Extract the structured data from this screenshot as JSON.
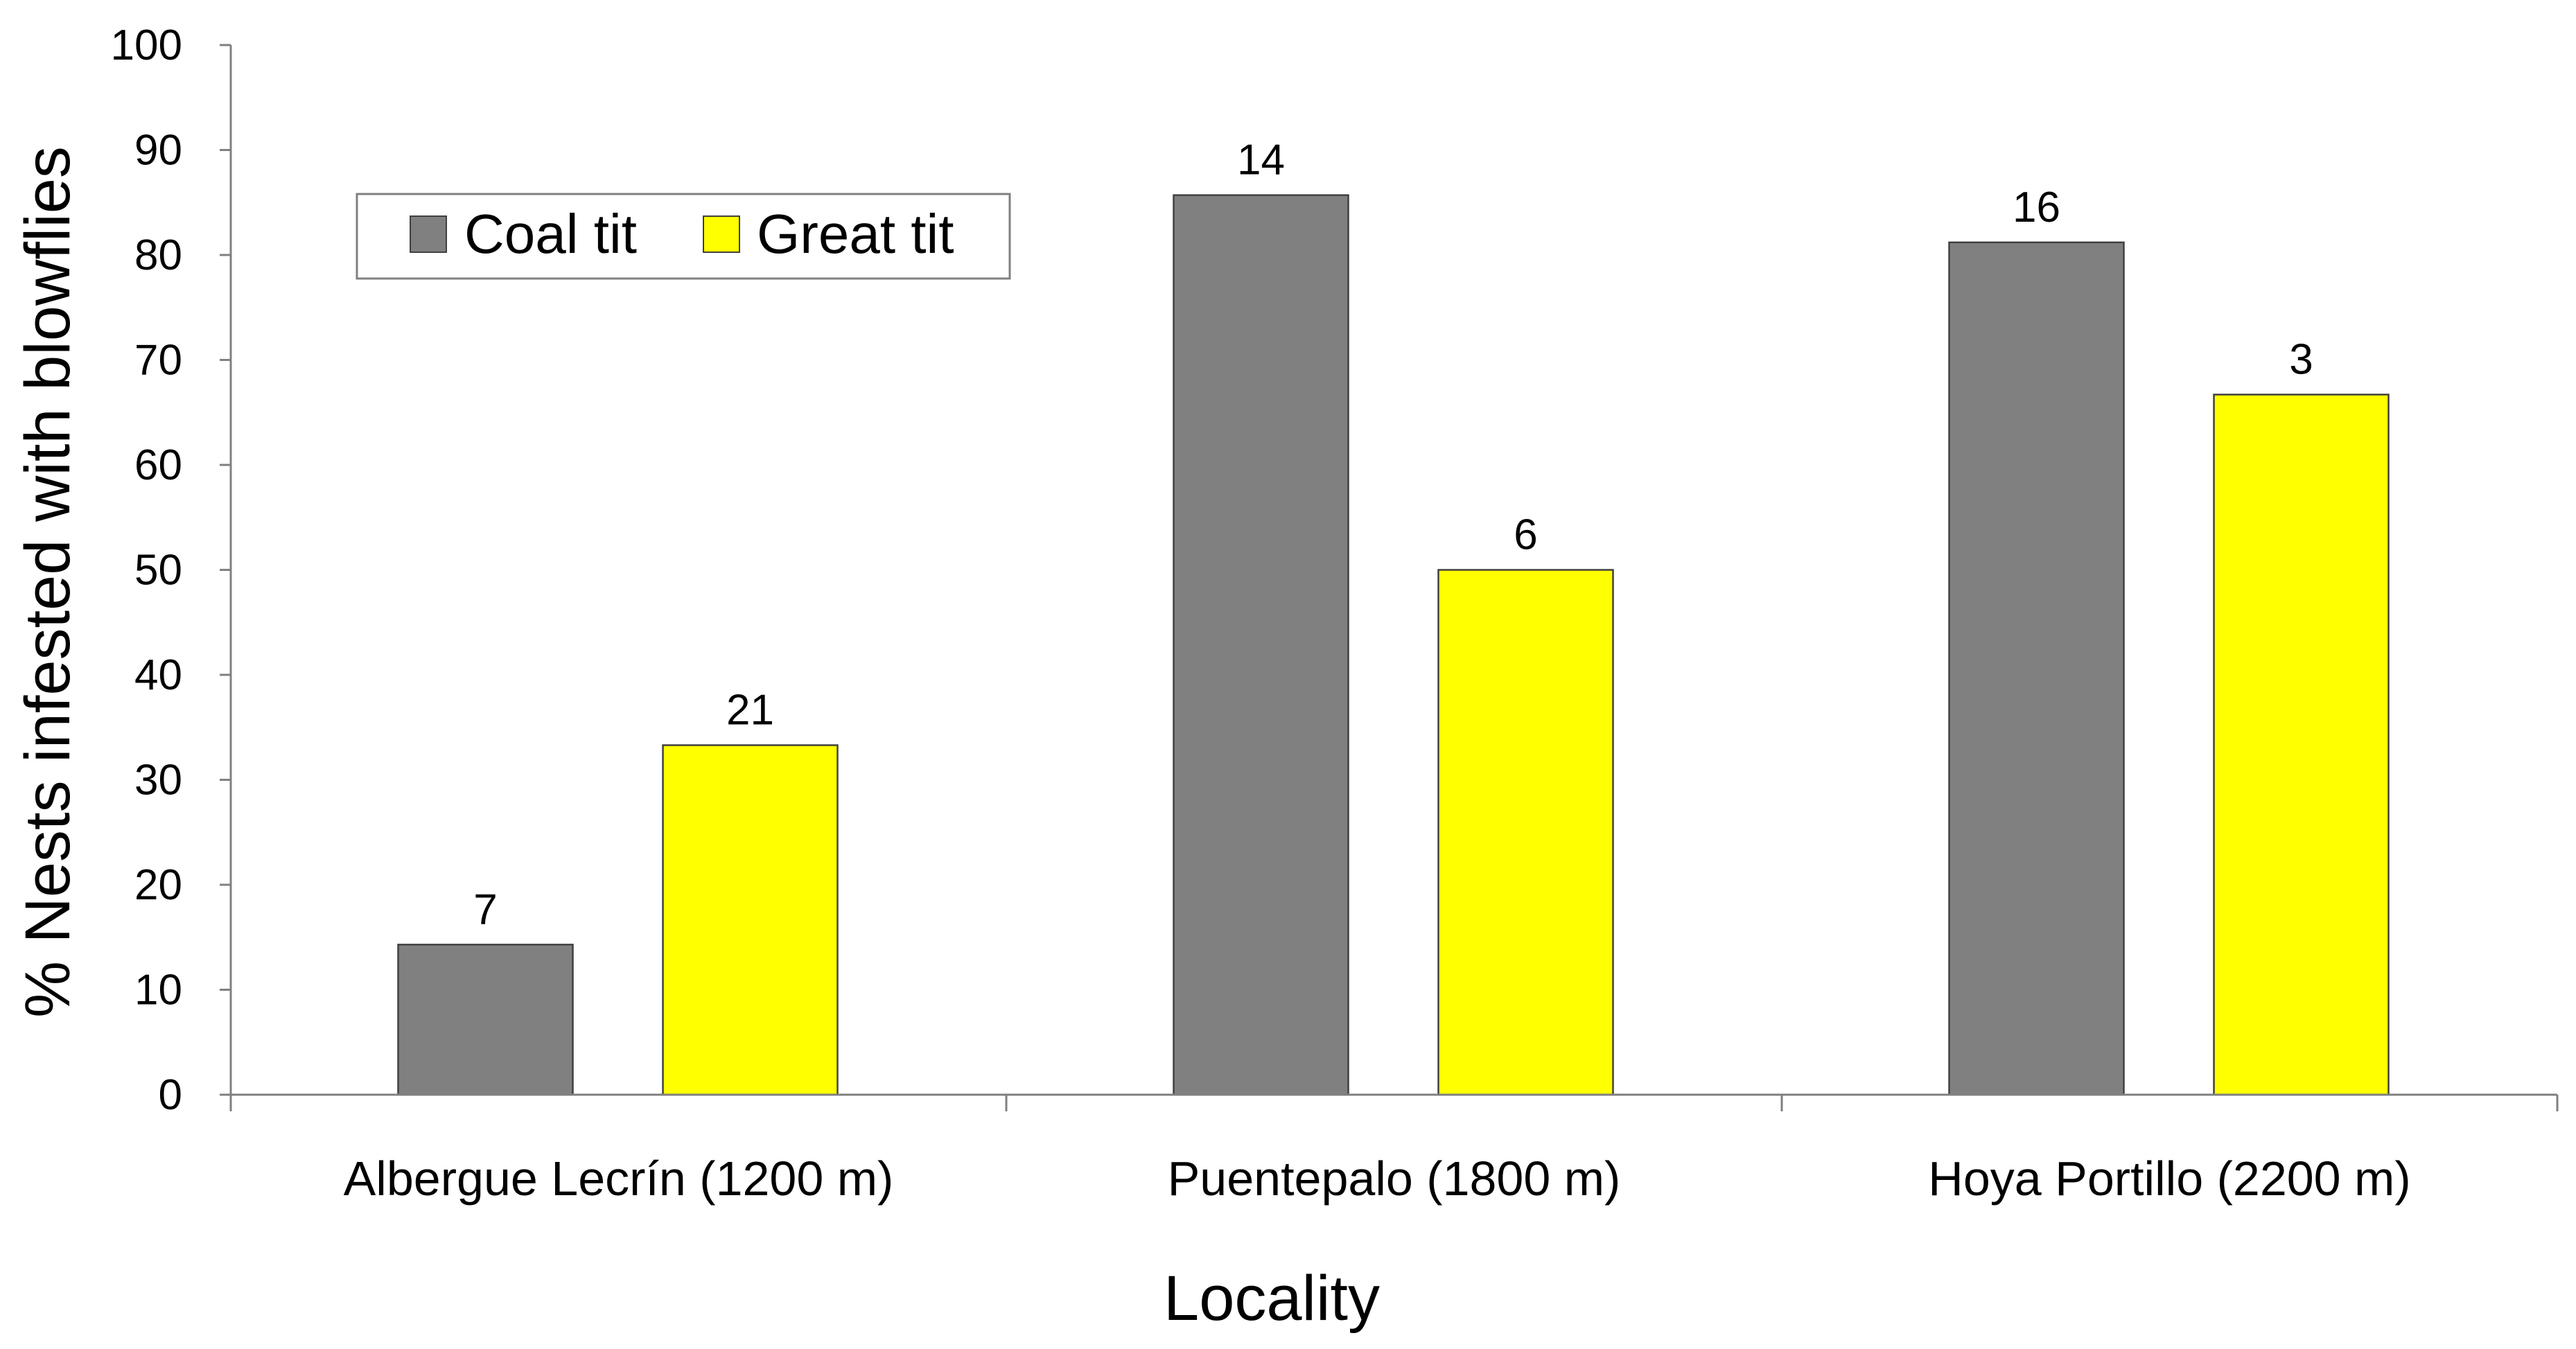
{
  "chart_data": {
    "type": "bar",
    "xlabel": "Locality",
    "ylabel": "% Nests infested with blowflies",
    "ylim": [
      0,
      100
    ],
    "yticks": [
      0,
      10,
      20,
      30,
      40,
      50,
      60,
      70,
      80,
      90,
      100
    ],
    "grid": false,
    "legend_position": "top-left",
    "categories": [
      "Albergue Lecrín (1200 m)",
      "Puentepalo (1800 m)",
      "Hoya Portillo (2200 m)"
    ],
    "series": [
      {
        "name": "Coal tit",
        "color": "#808080",
        "values": [
          14.3,
          85.7,
          81.2
        ],
        "data_labels": [
          "7",
          "14",
          "16"
        ]
      },
      {
        "name": "Great tit",
        "color": "#ffff00",
        "values": [
          33.3,
          50.0,
          66.7
        ],
        "data_labels": [
          "21",
          "6",
          "3"
        ]
      }
    ]
  }
}
